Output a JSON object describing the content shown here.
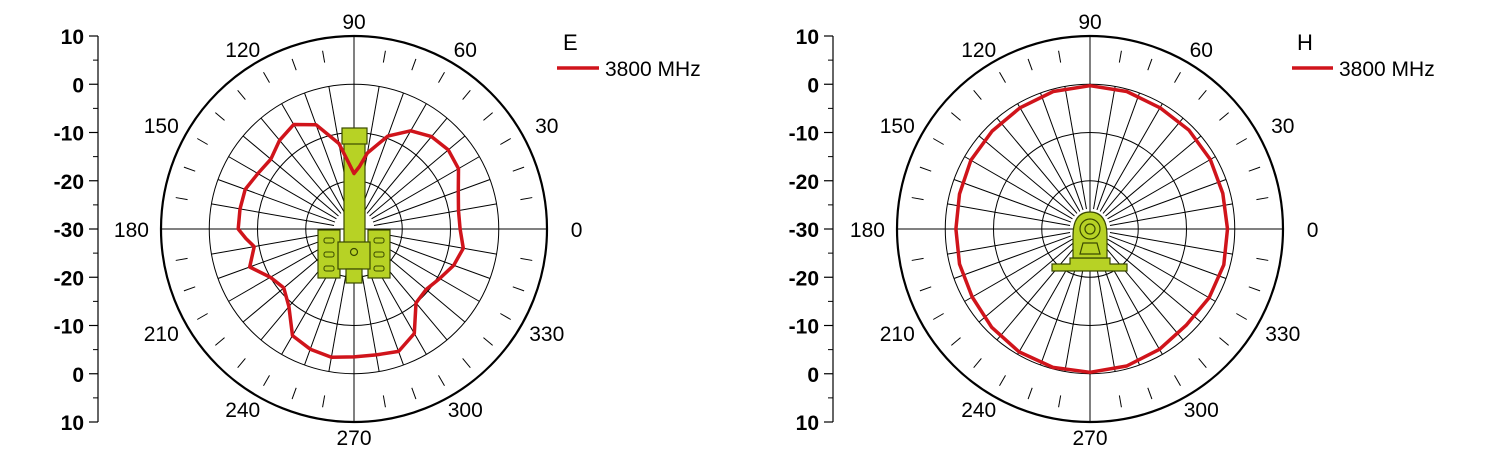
{
  "chart_data": [
    {
      "type": "polar",
      "plane_label": "E",
      "series": [
        {
          "name": "3800 MHz",
          "color": "#d0141b",
          "points": [
            [
              0,
              -8
            ],
            [
              10,
              -8
            ],
            [
              20,
              -7
            ],
            [
              30,
              -5
            ],
            [
              40,
              -4.5
            ],
            [
              50,
              -5
            ],
            [
              60,
              -6.5
            ],
            [
              70,
              -9.5
            ],
            [
              80,
              -14
            ],
            [
              85,
              -17
            ],
            [
              90,
              -18.5
            ],
            [
              95,
              -16
            ],
            [
              100,
              -12
            ],
            [
              110,
              -7
            ],
            [
              120,
              -5
            ],
            [
              130,
              -6
            ],
            [
              140,
              -7.5
            ],
            [
              150,
              -7
            ],
            [
              160,
              -6
            ],
            [
              170,
              -6
            ],
            [
              180,
              -6
            ],
            [
              185,
              -7.5
            ],
            [
              190,
              -9
            ],
            [
              200,
              -7
            ],
            [
              210,
              -10
            ],
            [
              220,
              -11
            ],
            [
              230,
              -9
            ],
            [
              240,
              -4.5
            ],
            [
              250,
              -3.5
            ],
            [
              260,
              -3
            ],
            [
              270,
              -3.5
            ],
            [
              280,
              -3.5
            ],
            [
              290,
              -3
            ],
            [
              300,
              -5
            ],
            [
              310,
              -10
            ],
            [
              320,
              -10.5
            ],
            [
              330,
              -9.5
            ],
            [
              340,
              -8
            ],
            [
              350,
              -7
            ]
          ]
        }
      ],
      "angle_labels": [
        "0",
        "30",
        "60",
        "90",
        "120",
        "150",
        "180",
        "210",
        "240",
        "270",
        "300",
        "330"
      ],
      "r_labels": [
        "10",
        "0",
        "-10",
        "-20",
        "-30",
        "-20",
        "-10",
        "0",
        "10"
      ],
      "r_range": [
        -30,
        10
      ],
      "ring_levels": [
        -20,
        -10,
        0,
        10
      ],
      "antenna": "vertical-mast"
    },
    {
      "type": "polar",
      "plane_label": "H",
      "series": [
        {
          "name": "3800 MHz",
          "color": "#d0141b",
          "points": [
            [
              0,
              -1.5
            ],
            [
              15,
              -1.5
            ],
            [
              30,
              -1.2
            ],
            [
              45,
              -1
            ],
            [
              60,
              -1
            ],
            [
              75,
              -0.5
            ],
            [
              90,
              -0.3
            ],
            [
              105,
              -0.5
            ],
            [
              120,
              -1
            ],
            [
              135,
              -1.3
            ],
            [
              150,
              -1.5
            ],
            [
              165,
              -2
            ],
            [
              180,
              -2.2
            ],
            [
              195,
              -2
            ],
            [
              210,
              -1.8
            ],
            [
              225,
              -1.2
            ],
            [
              240,
              -0.6
            ],
            [
              255,
              -0.3
            ],
            [
              270,
              -0.3
            ],
            [
              285,
              -0.6
            ],
            [
              300,
              -1.2
            ],
            [
              315,
              -1.8
            ],
            [
              330,
              -1.5
            ],
            [
              345,
              -1.3
            ]
          ]
        }
      ],
      "angle_labels": [
        "0",
        "30",
        "60",
        "90",
        "120",
        "150",
        "180",
        "210",
        "240",
        "270",
        "300",
        "330"
      ],
      "r_labels": [
        "10",
        "0",
        "-10",
        "-20",
        "-30",
        "-20",
        "-10",
        "0",
        "10"
      ],
      "r_range": [
        -30,
        10
      ],
      "ring_levels": [
        -20,
        -10,
        0,
        10
      ],
      "antenna": "mount-top-view"
    }
  ]
}
